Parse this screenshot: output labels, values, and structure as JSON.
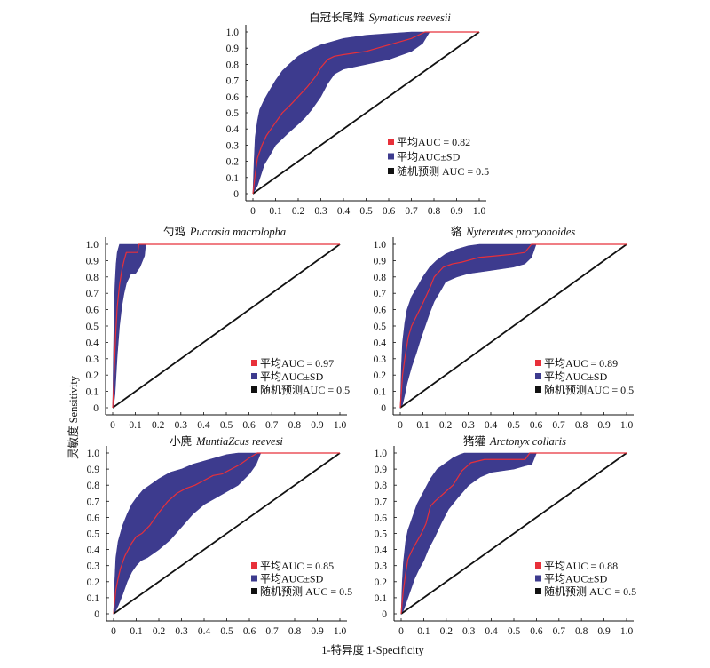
{
  "figure": {
    "ylabel": "灵敏度 Sensitivity",
    "xlabel": "1-特异度 1-Specificity"
  },
  "chart_data": [
    {
      "type": "line",
      "title_cn": "白冠长尾雉",
      "title_latin": "Symaticus reevesii",
      "xlim": [
        0,
        1
      ],
      "ylim": [
        0,
        1
      ],
      "grid": false,
      "legend_position": "bottom-right",
      "xticks": [
        0,
        0.1,
        0.2,
        0.3,
        0.4,
        0.5,
        0.6,
        0.7,
        0.8,
        0.9,
        1.0
      ],
      "xtick_labels": [
        "0",
        "0.1",
        "0.2",
        "0.3",
        "0.4",
        "0.5",
        "0.6",
        "0.7",
        "0.8",
        "0.9",
        "1.0"
      ],
      "yticks": [
        0,
        0.1,
        0.2,
        0.3,
        0.4,
        0.5,
        0.6,
        0.7,
        0.8,
        0.9,
        1.0
      ],
      "ytick_labels": [
        "0",
        "0.1",
        "0.2",
        "0.3",
        "0.4",
        "0.5",
        "0.6",
        "0.7",
        "0.8",
        "0.9",
        "1.0"
      ],
      "series": [
        {
          "name": "平均AUC = 0.82",
          "color": "#e8303a",
          "x": [
            0,
            0.01,
            0.02,
            0.04,
            0.06,
            0.08,
            0.1,
            0.13,
            0.16,
            0.2,
            0.24,
            0.28,
            0.3,
            0.33,
            0.36,
            0.4,
            0.5,
            0.6,
            0.7,
            0.76,
            1.0
          ],
          "y": [
            0,
            0.12,
            0.22,
            0.3,
            0.36,
            0.4,
            0.44,
            0.5,
            0.54,
            0.6,
            0.66,
            0.73,
            0.78,
            0.83,
            0.85,
            0.86,
            0.88,
            0.92,
            0.96,
            1.0,
            1.0
          ]
        },
        {
          "name": "平均AUC±SD",
          "color": "#3d3b8e",
          "upper": {
            "x": [
              0,
              0.005,
              0.01,
              0.02,
              0.03,
              0.05,
              0.07,
              0.1,
              0.13,
              0.16,
              0.2,
              0.25,
              0.3,
              0.35,
              0.4,
              0.5,
              0.6,
              0.7
            ],
            "y": [
              0,
              0.2,
              0.35,
              0.45,
              0.52,
              0.58,
              0.63,
              0.7,
              0.76,
              0.8,
              0.85,
              0.89,
              0.92,
              0.94,
              0.96,
              0.98,
              0.99,
              1.0
            ]
          },
          "lower": {
            "x": [
              0,
              0.02,
              0.05,
              0.08,
              0.1,
              0.13,
              0.16,
              0.2,
              0.23,
              0.26,
              0.3,
              0.33,
              0.36,
              0.4,
              0.5,
              0.6,
              0.7,
              0.75,
              0.78
            ],
            "y": [
              0,
              0.05,
              0.18,
              0.25,
              0.3,
              0.34,
              0.38,
              0.43,
              0.47,
              0.52,
              0.6,
              0.68,
              0.74,
              0.77,
              0.8,
              0.83,
              0.88,
              0.93,
              1.0
            ]
          }
        },
        {
          "name": "随机预测 AUC = 0.5",
          "color": "#111111",
          "x": [
            0,
            1
          ],
          "y": [
            0,
            1
          ]
        }
      ]
    },
    {
      "type": "line",
      "title_cn": "勺鸡",
      "title_latin": "Pucrasia macrolopha",
      "xlim": [
        0,
        1
      ],
      "ylim": [
        0,
        1
      ],
      "grid": false,
      "legend_position": "bottom-right",
      "xticks": [
        0,
        0.1,
        0.2,
        0.3,
        0.4,
        0.5,
        0.6,
        0.7,
        0.8,
        0.9,
        1.0
      ],
      "xtick_labels": [
        "0",
        "0.1",
        "0.2",
        "0.3",
        "0.4",
        "0.5",
        "0.6",
        "0.7",
        "0.8",
        "0.9",
        "1.0"
      ],
      "yticks": [
        0,
        0.1,
        0.2,
        0.3,
        0.4,
        0.5,
        0.6,
        0.7,
        0.8,
        0.9,
        1.0
      ],
      "ytick_labels": [
        "0",
        "0.1",
        "0.2",
        "0.3",
        "0.4",
        "0.5",
        "0.6",
        "0.7",
        "0.8",
        "0.9",
        "1.0"
      ],
      "series": [
        {
          "name": "平均AUC = 0.97",
          "color": "#e8303a",
          "x": [
            0,
            0.005,
            0.01,
            0.015,
            0.02,
            0.03,
            0.04,
            0.05,
            0.06,
            0.11,
            0.115,
            1.0
          ],
          "y": [
            0,
            0.15,
            0.35,
            0.5,
            0.62,
            0.75,
            0.84,
            0.9,
            0.95,
            0.95,
            1.0,
            1.0
          ]
        },
        {
          "name": "平均AUC±SD",
          "color": "#3d3b8e",
          "upper": {
            "x": [
              0,
              0.003,
              0.006,
              0.01,
              0.015,
              0.02,
              0.03
            ],
            "y": [
              0,
              0.3,
              0.55,
              0.75,
              0.88,
              0.95,
              1.0
            ]
          },
          "lower": {
            "x": [
              0,
              0.005,
              0.01,
              0.015,
              0.02,
              0.03,
              0.04,
              0.05,
              0.06,
              0.08,
              0.1,
              0.12,
              0.14,
              0.145
            ],
            "y": [
              0,
              0.02,
              0.08,
              0.2,
              0.32,
              0.5,
              0.62,
              0.7,
              0.76,
              0.82,
              0.82,
              0.86,
              0.93,
              1.0
            ]
          }
        },
        {
          "name": "随机预测AUC = 0.5",
          "color": "#111111",
          "x": [
            0,
            1
          ],
          "y": [
            0,
            1
          ]
        }
      ]
    },
    {
      "type": "line",
      "title_cn": "貉",
      "title_latin": "Nytereutes procyonoides",
      "xlim": [
        0,
        1
      ],
      "ylim": [
        0,
        1
      ],
      "grid": false,
      "legend_position": "bottom-right",
      "xticks": [
        0,
        0.1,
        0.2,
        0.3,
        0.4,
        0.5,
        0.6,
        0.7,
        0.8,
        0.9,
        1.0
      ],
      "xtick_labels": [
        "0",
        "0.1",
        "0.2",
        "0.3",
        "0.4",
        "0.5",
        "0.6",
        "0.7",
        "0.8",
        "0.9",
        "1.0"
      ],
      "yticks": [
        0,
        0.1,
        0.2,
        0.3,
        0.4,
        0.5,
        0.6,
        0.7,
        0.8,
        0.9,
        1.0
      ],
      "ytick_labels": [
        "0",
        "0.1",
        "0.2",
        "0.3",
        "0.4",
        "0.5",
        "0.6",
        "0.7",
        "0.8",
        "0.9",
        "1.0"
      ],
      "series": [
        {
          "name": "平均AUC = 0.89",
          "color": "#e8303a",
          "x": [
            0,
            0.005,
            0.01,
            0.02,
            0.035,
            0.05,
            0.075,
            0.1,
            0.13,
            0.15,
            0.19,
            0.23,
            0.27,
            0.35,
            0.43,
            0.5,
            0.55,
            0.58,
            1.0
          ],
          "y": [
            0,
            0.1,
            0.2,
            0.3,
            0.43,
            0.5,
            0.57,
            0.64,
            0.73,
            0.8,
            0.86,
            0.88,
            0.89,
            0.92,
            0.93,
            0.94,
            0.95,
            1.0,
            1.0
          ]
        },
        {
          "name": "平均AUC±SD",
          "color": "#3d3b8e",
          "upper": {
            "x": [
              0,
              0.005,
              0.01,
              0.02,
              0.03,
              0.05,
              0.08,
              0.1,
              0.13,
              0.16,
              0.2,
              0.25,
              0.3,
              0.35
            ],
            "y": [
              0,
              0.25,
              0.4,
              0.52,
              0.6,
              0.68,
              0.75,
              0.8,
              0.86,
              0.9,
              0.94,
              0.97,
              0.99,
              1.0
            ]
          },
          "lower": {
            "x": [
              0,
              0.01,
              0.02,
              0.03,
              0.05,
              0.07,
              0.09,
              0.11,
              0.13,
              0.15,
              0.18,
              0.2,
              0.25,
              0.3,
              0.4,
              0.5,
              0.55,
              0.58,
              0.6
            ],
            "y": [
              0,
              0.02,
              0.08,
              0.15,
              0.25,
              0.33,
              0.42,
              0.5,
              0.58,
              0.65,
              0.72,
              0.77,
              0.8,
              0.82,
              0.84,
              0.86,
              0.88,
              0.92,
              1.0
            ]
          }
        },
        {
          "name": "随机预测AUC = 0.5",
          "color": "#111111",
          "x": [
            0,
            1
          ],
          "y": [
            0,
            1
          ]
        }
      ]
    },
    {
      "type": "line",
      "title_cn": "小麂",
      "title_latin": "MuntiaZcus reevesi",
      "xlim": [
        0,
        1
      ],
      "ylim": [
        0,
        1
      ],
      "grid": false,
      "legend_position": "bottom-right",
      "xticks": [
        0,
        0.1,
        0.2,
        0.3,
        0.4,
        0.5,
        0.6,
        0.7,
        0.8,
        0.9,
        1.0
      ],
      "xtick_labels": [
        "0",
        "0.1",
        "0.2",
        "0.3",
        "0.4",
        "0.5",
        "0.6",
        "0.7",
        "0.8",
        "0.9",
        "1.0"
      ],
      "yticks": [
        0,
        0.1,
        0.2,
        0.3,
        0.4,
        0.5,
        0.6,
        0.7,
        0.8,
        0.9,
        1.0
      ],
      "ytick_labels": [
        "0",
        "0.1",
        "0.2",
        "0.3",
        "0.4",
        "0.5",
        "0.6",
        "0.7",
        "0.8",
        "0.9",
        "1.0"
      ],
      "series": [
        {
          "name": "平均AUC = 0.85",
          "color": "#e8303a",
          "x": [
            0,
            0.005,
            0.01,
            0.02,
            0.03,
            0.05,
            0.08,
            0.1,
            0.125,
            0.16,
            0.2,
            0.24,
            0.28,
            0.32,
            0.36,
            0.4,
            0.44,
            0.48,
            0.52,
            0.56,
            0.6,
            0.635,
            1.0
          ],
          "y": [
            0,
            0.08,
            0.15,
            0.22,
            0.28,
            0.36,
            0.44,
            0.48,
            0.5,
            0.55,
            0.63,
            0.7,
            0.75,
            0.78,
            0.8,
            0.83,
            0.86,
            0.87,
            0.9,
            0.93,
            0.97,
            1.0,
            1.0
          ]
        },
        {
          "name": "平均AUC±SD",
          "color": "#3d3b8e",
          "upper": {
            "x": [
              0,
              0.005,
              0.01,
              0.02,
              0.04,
              0.06,
              0.08,
              0.1,
              0.13,
              0.16,
              0.2,
              0.25,
              0.3,
              0.35,
              0.4,
              0.45,
              0.5,
              0.55
            ],
            "y": [
              0,
              0.2,
              0.35,
              0.45,
              0.55,
              0.62,
              0.68,
              0.72,
              0.77,
              0.8,
              0.84,
              0.88,
              0.9,
              0.93,
              0.95,
              0.97,
              0.99,
              1.0
            ]
          },
          "lower": {
            "x": [
              0,
              0.01,
              0.02,
              0.04,
              0.06,
              0.08,
              0.1,
              0.12,
              0.15,
              0.2,
              0.25,
              0.3,
              0.35,
              0.4,
              0.45,
              0.5,
              0.55,
              0.6,
              0.63,
              0.65
            ],
            "y": [
              0,
              0.02,
              0.05,
              0.12,
              0.2,
              0.26,
              0.3,
              0.33,
              0.35,
              0.4,
              0.46,
              0.54,
              0.62,
              0.68,
              0.72,
              0.76,
              0.8,
              0.87,
              0.93,
              1.0
            ]
          }
        },
        {
          "name": "随机预测 AUC = 0.5",
          "color": "#111111",
          "x": [
            0,
            1
          ],
          "y": [
            0,
            1
          ]
        }
      ]
    },
    {
      "type": "line",
      "title_cn": "猪獾",
      "title_latin": "Arctonyx collaris",
      "xlim": [
        0,
        1
      ],
      "ylim": [
        0,
        1
      ],
      "grid": false,
      "legend_position": "bottom-right",
      "xticks": [
        0,
        0.1,
        0.2,
        0.3,
        0.4,
        0.5,
        0.6,
        0.7,
        0.8,
        0.9,
        1.0
      ],
      "xtick_labels": [
        "0",
        "0.1",
        "0.2",
        "0.3",
        "0.4",
        "0.5",
        "0.6",
        "0.7",
        "0.8",
        "0.9",
        "1.0"
      ],
      "yticks": [
        0,
        0.1,
        0.2,
        0.3,
        0.4,
        0.5,
        0.6,
        0.7,
        0.8,
        0.9,
        1.0
      ],
      "ytick_labels": [
        "0",
        "0.1",
        "0.2",
        "0.3",
        "0.4",
        "0.5",
        "0.6",
        "0.7",
        "0.8",
        "0.9",
        "1.0"
      ],
      "series": [
        {
          "name": "平均AUC = 0.88",
          "color": "#e8303a",
          "x": [
            0,
            0.005,
            0.01,
            0.02,
            0.03,
            0.05,
            0.07,
            0.09,
            0.11,
            0.13,
            0.15,
            0.19,
            0.23,
            0.27,
            0.31,
            0.37,
            0.55,
            0.57,
            1.0
          ],
          "y": [
            0,
            0.08,
            0.15,
            0.25,
            0.34,
            0.4,
            0.45,
            0.5,
            0.56,
            0.67,
            0.7,
            0.75,
            0.8,
            0.89,
            0.94,
            0.96,
            0.96,
            1.0,
            1.0
          ]
        },
        {
          "name": "平均AUC±SD",
          "color": "#3d3b8e",
          "upper": {
            "x": [
              0,
              0.005,
              0.01,
              0.02,
              0.03,
              0.05,
              0.07,
              0.1,
              0.13,
              0.16,
              0.2,
              0.23,
              0.26,
              0.28
            ],
            "y": [
              0,
              0.2,
              0.32,
              0.45,
              0.52,
              0.6,
              0.68,
              0.76,
              0.84,
              0.9,
              0.94,
              0.97,
              0.99,
              1.0
            ]
          },
          "lower": {
            "x": [
              0,
              0.01,
              0.02,
              0.04,
              0.06,
              0.08,
              0.1,
              0.12,
              0.15,
              0.18,
              0.21,
              0.25,
              0.3,
              0.35,
              0.4,
              0.5,
              0.55,
              0.58,
              0.6
            ],
            "y": [
              0,
              0.02,
              0.06,
              0.14,
              0.22,
              0.28,
              0.33,
              0.4,
              0.48,
              0.57,
              0.65,
              0.72,
              0.8,
              0.85,
              0.88,
              0.9,
              0.92,
              0.93,
              1.0
            ]
          }
        },
        {
          "name": "随机预测 AUC = 0.5",
          "color": "#111111",
          "x": [
            0,
            1
          ],
          "y": [
            0,
            1
          ]
        }
      ]
    }
  ]
}
